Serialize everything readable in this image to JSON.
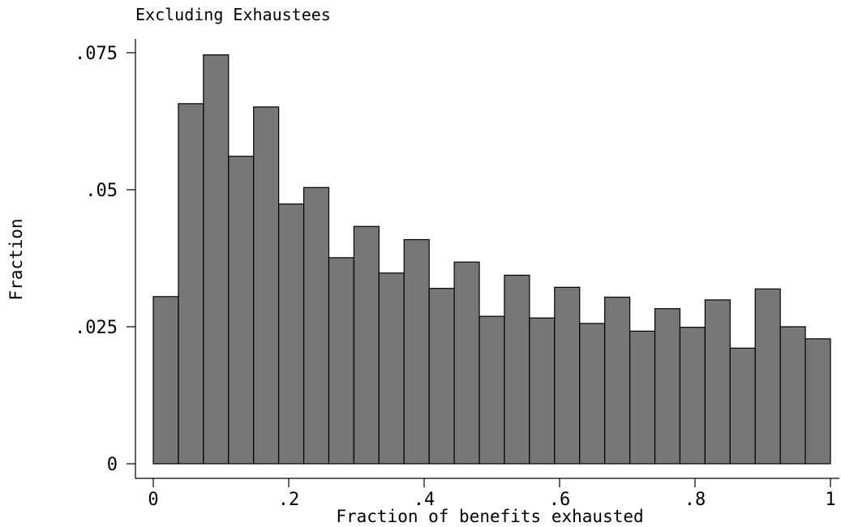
{
  "chart_data": {
    "type": "bar",
    "title": "Excluding Exhaustees",
    "xlabel": "Fraction of benefits exhausted",
    "ylabel": "Fraction",
    "xlim": [
      0,
      1
    ],
    "ylim": [
      0,
      0.075
    ],
    "bin_width": 0.037,
    "x_ticks": [
      {
        "value": 0,
        "label": "0"
      },
      {
        "value": 0.2,
        "label": ".2"
      },
      {
        "value": 0.4,
        "label": ".4"
      },
      {
        "value": 0.6,
        "label": ".6"
      },
      {
        "value": 0.8,
        "label": ".8"
      },
      {
        "value": 1,
        "label": "1"
      }
    ],
    "y_ticks": [
      {
        "value": 0,
        "label": "0"
      },
      {
        "value": 0.025,
        "label": ".025"
      },
      {
        "value": 0.05,
        "label": ".05"
      },
      {
        "value": 0.075,
        "label": ".075"
      }
    ],
    "values": [
      0.0305,
      0.0657,
      0.0746,
      0.0561,
      0.0651,
      0.0474,
      0.0504,
      0.0376,
      0.0433,
      0.0348,
      0.0409,
      0.032,
      0.0368,
      0.0269,
      0.0344,
      0.0266,
      0.0322,
      0.0256,
      0.0304,
      0.0242,
      0.0283,
      0.0249,
      0.0299,
      0.0211,
      0.0319,
      0.025,
      0.0228
    ],
    "grid": false,
    "legend": "none",
    "colors": {
      "bar_fill": "#777777",
      "bar_edge": "#000000"
    }
  }
}
